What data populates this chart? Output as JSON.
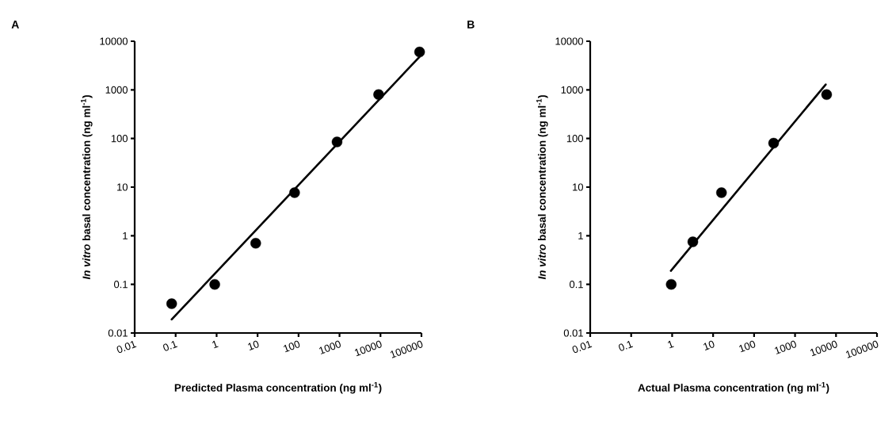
{
  "chart_data": [
    {
      "type": "scatter",
      "annotations": [
        "A"
      ],
      "xlabel": "Predicted Plasma concentration (ng ml$^{-1}$)",
      "ylabel": "*In vitro* basal concentration  (ng ml$^{-1}$)",
      "log": "xy",
      "xlim": [
        0.01,
        100000
      ],
      "ylim": [
        0.01,
        10000
      ],
      "xticks": [
        0.01,
        0.1,
        1,
        10,
        100,
        1000,
        10000,
        100000
      ],
      "yticks": [
        0.01,
        0.1,
        1,
        10,
        100,
        1000,
        10000
      ],
      "grid": false,
      "series": [
        {
          "marker": "circle",
          "color": "#000000",
          "x": [
            0.08,
            0.9,
            9,
            80,
            870,
            9000,
            90000
          ],
          "values": [
            0.04,
            0.1,
            0.7,
            7.7,
            85,
            800,
            6000
          ]
        },
        {
          "type": "line",
          "marker": "none",
          "color": "#000000",
          "x": [
            0.08,
            90000
          ],
          "values": [
            0.019,
            4800
          ]
        }
      ]
    },
    {
      "type": "scatter",
      "annotations": [
        "B"
      ],
      "xlabel": "Actual Plasma concentration (ng ml$^{-1}$)",
      "ylabel": "*In vitro* basal concentration  (ng ml$^{-1}$)",
      "log": "xy",
      "xlim": [
        0.01,
        100000
      ],
      "ylim": [
        0.01,
        10000
      ],
      "xticks": [
        0.01,
        0.1,
        1,
        10,
        100,
        1000,
        10000,
        100000
      ],
      "yticks": [
        0.01,
        0.1,
        1,
        10,
        100,
        1000,
        10000
      ],
      "grid": false,
      "series": [
        {
          "marker": "circle",
          "color": "#000000",
          "x": [
            0.95,
            3.2,
            16,
            300,
            5900
          ],
          "values": [
            0.1,
            0.75,
            7.7,
            80,
            800
          ]
        },
        {
          "type": "line",
          "marker": "none",
          "color": "#000000",
          "x": [
            0.93,
            5600
          ],
          "values": [
            0.19,
            1290
          ]
        }
      ]
    }
  ]
}
